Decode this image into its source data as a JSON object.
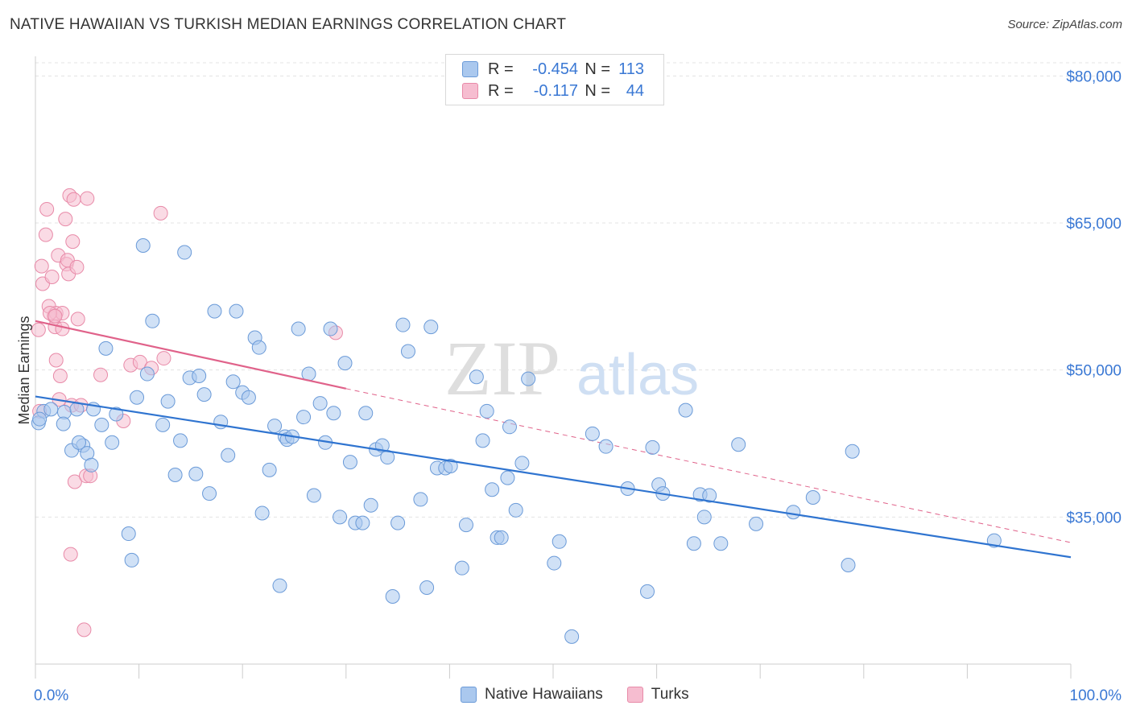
{
  "header": {
    "title": "NATIVE HAWAIIAN VS TURKISH MEDIAN EARNINGS CORRELATION CHART",
    "source": "Source: ZipAtlas.com"
  },
  "watermark": {
    "zip": "ZIP",
    "atlas": "atlas"
  },
  "legend": {
    "rows": [
      {
        "r_label": "R =",
        "r_value": "-0.454",
        "n_label": "N =",
        "n_value": "113"
      },
      {
        "r_label": "R =",
        "r_value": "-0.117",
        "n_label": "N =",
        "n_value": "44"
      }
    ]
  },
  "colors": {
    "blue_fill": "#aac8ee",
    "blue_stroke": "#6a9ad8",
    "blue_line": "#2f74d0",
    "pink_fill": "#f6bdd0",
    "pink_stroke": "#e88aa8",
    "pink_line": "#e0628a",
    "axis_text": "#3a78d4",
    "grid": "#e3e3e3"
  },
  "chart_data": {
    "type": "scatter",
    "title": "NATIVE HAWAIIAN VS TURKISH MEDIAN EARNINGS CORRELATION CHART",
    "xlabel": "",
    "ylabel": "Median Earnings",
    "xlim": [
      0,
      100
    ],
    "ylim": [
      20000,
      82000
    ],
    "x_tick_labels": [
      "0.0%",
      "100.0%"
    ],
    "y_ticks": [
      35000,
      50000,
      65000,
      80000
    ],
    "y_tick_labels": [
      "$35,000",
      "$50,000",
      "$65,000",
      "$80,000"
    ],
    "grid": true,
    "legend_position": "top-center",
    "series": [
      {
        "name": "Native Hawaiians",
        "color": "#aac8ee",
        "trend": {
          "x": [
            0,
            100
          ],
          "y": [
            47300,
            30900
          ]
        },
        "points": [
          [
            0.3,
            44600
          ],
          [
            0.8,
            45800
          ],
          [
            1.5,
            46000
          ],
          [
            2.8,
            45700
          ],
          [
            2.7,
            44500
          ],
          [
            4.0,
            46000
          ],
          [
            4.6,
            42300
          ],
          [
            3.5,
            41800
          ],
          [
            4.2,
            42600
          ],
          [
            5.0,
            41500
          ],
          [
            5.4,
            40300
          ],
          [
            5.6,
            46000
          ],
          [
            6.4,
            44400
          ],
          [
            6.8,
            52200
          ],
          [
            7.4,
            42600
          ],
          [
            7.8,
            45500
          ],
          [
            9.0,
            33300
          ],
          [
            9.3,
            30600
          ],
          [
            9.8,
            47200
          ],
          [
            10.4,
            62700
          ],
          [
            10.8,
            49600
          ],
          [
            11.3,
            55000
          ],
          [
            12.3,
            44400
          ],
          [
            12.8,
            46800
          ],
          [
            13.5,
            39300
          ],
          [
            14.0,
            42800
          ],
          [
            14.4,
            62000
          ],
          [
            14.9,
            49200
          ],
          [
            15.5,
            39400
          ],
          [
            15.8,
            49400
          ],
          [
            16.3,
            47500
          ],
          [
            16.8,
            37400
          ],
          [
            17.3,
            56000
          ],
          [
            17.9,
            44700
          ],
          [
            18.6,
            41300
          ],
          [
            19.1,
            48800
          ],
          [
            19.4,
            56000
          ],
          [
            20.0,
            47700
          ],
          [
            20.6,
            47200
          ],
          [
            21.2,
            53300
          ],
          [
            21.6,
            52300
          ],
          [
            21.9,
            35400
          ],
          [
            22.6,
            39800
          ],
          [
            23.1,
            44300
          ],
          [
            23.6,
            28000
          ],
          [
            24.1,
            43200
          ],
          [
            24.3,
            42900
          ],
          [
            24.8,
            43200
          ],
          [
            25.4,
            54200
          ],
          [
            25.9,
            45200
          ],
          [
            26.4,
            49600
          ],
          [
            26.9,
            37200
          ],
          [
            27.5,
            46600
          ],
          [
            28.0,
            42600
          ],
          [
            28.5,
            54200
          ],
          [
            28.8,
            45600
          ],
          [
            29.4,
            35000
          ],
          [
            29.9,
            50700
          ],
          [
            30.4,
            40600
          ],
          [
            30.9,
            34400
          ],
          [
            31.6,
            34400
          ],
          [
            31.9,
            45600
          ],
          [
            32.4,
            36200
          ],
          [
            32.9,
            41900
          ],
          [
            33.5,
            42300
          ],
          [
            34.0,
            41100
          ],
          [
            34.5,
            26900
          ],
          [
            35.0,
            34400
          ],
          [
            35.5,
            54600
          ],
          [
            36.0,
            51900
          ],
          [
            37.2,
            36800
          ],
          [
            37.8,
            27800
          ],
          [
            38.2,
            54400
          ],
          [
            38.8,
            40000
          ],
          [
            39.6,
            40000
          ],
          [
            40.1,
            40200
          ],
          [
            41.2,
            29800
          ],
          [
            41.6,
            34200
          ],
          [
            42.6,
            49300
          ],
          [
            43.2,
            42800
          ],
          [
            43.6,
            45800
          ],
          [
            44.1,
            37800
          ],
          [
            44.6,
            32900
          ],
          [
            45.0,
            32900
          ],
          [
            45.6,
            39000
          ],
          [
            45.8,
            44200
          ],
          [
            46.4,
            35700
          ],
          [
            47.0,
            40500
          ],
          [
            47.6,
            49100
          ],
          [
            50.1,
            30300
          ],
          [
            50.6,
            32500
          ],
          [
            51.8,
            22800
          ],
          [
            53.8,
            43500
          ],
          [
            55.1,
            42200
          ],
          [
            57.2,
            37900
          ],
          [
            59.1,
            27400
          ],
          [
            59.6,
            42100
          ],
          [
            60.2,
            38300
          ],
          [
            60.6,
            37400
          ],
          [
            62.8,
            45900
          ],
          [
            63.6,
            32300
          ],
          [
            64.2,
            37300
          ],
          [
            64.6,
            35000
          ],
          [
            65.1,
            37200
          ],
          [
            66.2,
            32300
          ],
          [
            67.9,
            42400
          ],
          [
            69.6,
            34300
          ],
          [
            73.2,
            35500
          ],
          [
            75.1,
            37000
          ],
          [
            78.5,
            30100
          ],
          [
            78.9,
            41700
          ],
          [
            92.6,
            32600
          ],
          [
            0.4,
            45000
          ]
        ]
      },
      {
        "name": "Turks",
        "color": "#f6bdd0",
        "trend": {
          "x": [
            0,
            30
          ],
          "y": [
            55000,
            48100
          ]
        },
        "trend_extension": {
          "x": [
            30,
            100
          ],
          "y": [
            48100,
            32400
          ]
        },
        "points": [
          [
            0.3,
            54100
          ],
          [
            0.6,
            60600
          ],
          [
            0.7,
            58800
          ],
          [
            1.0,
            63800
          ],
          [
            1.1,
            66400
          ],
          [
            1.3,
            56500
          ],
          [
            1.6,
            59500
          ],
          [
            1.8,
            55500
          ],
          [
            1.9,
            54400
          ],
          [
            2.0,
            55800
          ],
          [
            2.0,
            51000
          ],
          [
            2.2,
            61700
          ],
          [
            2.3,
            47000
          ],
          [
            2.4,
            49400
          ],
          [
            2.6,
            55800
          ],
          [
            2.6,
            54200
          ],
          [
            2.9,
            65400
          ],
          [
            3.0,
            60800
          ],
          [
            3.1,
            61200
          ],
          [
            3.2,
            59800
          ],
          [
            3.3,
            67800
          ],
          [
            3.4,
            31200
          ],
          [
            3.5,
            46400
          ],
          [
            3.6,
            63100
          ],
          [
            3.7,
            67400
          ],
          [
            3.8,
            38600
          ],
          [
            4.0,
            60500
          ],
          [
            4.1,
            55200
          ],
          [
            4.4,
            46400
          ],
          [
            4.7,
            23500
          ],
          [
            4.9,
            39200
          ],
          [
            5.0,
            67500
          ],
          [
            5.3,
            39200
          ],
          [
            6.3,
            49500
          ],
          [
            8.5,
            44800
          ],
          [
            9.2,
            50500
          ],
          [
            10.1,
            50800
          ],
          [
            11.2,
            50200
          ],
          [
            12.1,
            66000
          ],
          [
            12.4,
            51200
          ],
          [
            29.0,
            53800
          ],
          [
            0.4,
            45800
          ],
          [
            1.4,
            55800
          ],
          [
            1.9,
            55500
          ]
        ]
      }
    ]
  }
}
